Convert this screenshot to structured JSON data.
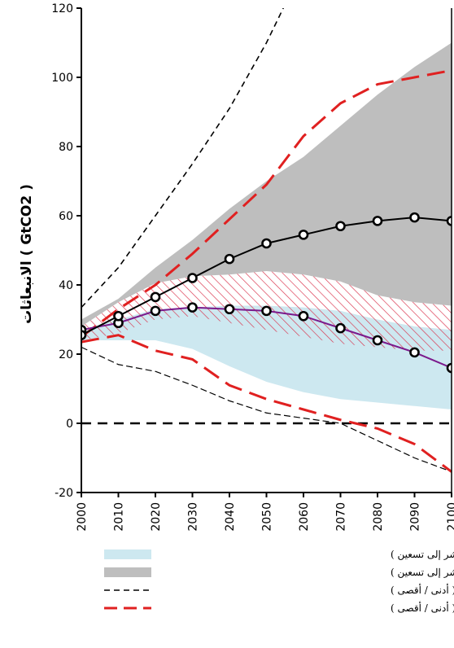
{
  "chart_data": {
    "type": "line",
    "ylabel": "الانبعاثات ( GtCO2 )",
    "xlim": [
      2000,
      2100
    ],
    "ylim": [
      -20,
      120
    ],
    "x_ticks": [
      "2000",
      "2010",
      "2020",
      "2030",
      "2040",
      "2050",
      "2060",
      "2070",
      "2080",
      "2090",
      "2100"
    ],
    "y_ticks": [
      "-20",
      "0",
      "20",
      "40",
      "60",
      "80",
      "100",
      "120"
    ],
    "grid": false,
    "legend_position": "bottom",
    "colors": {
      "stabilization_band": "#cde8f0",
      "baseline_band": "#bebebe",
      "hatch": "#d9304a",
      "red_dash": "#e02020",
      "black_dash": "#000000",
      "black_marker_line": "#000000",
      "purple_marker_line": "#7b1a8c"
    },
    "bands": [
      {
        "name": "نطاق التثبيت ( مئين عاشر إلى تسعين )",
        "x": [
          2000,
          2010,
          2020,
          2030,
          2040,
          2050,
          2060,
          2070,
          2080,
          2090,
          2100
        ],
        "lower": [
          24,
          24,
          24,
          21.5,
          16.5,
          12,
          9,
          7,
          6,
          5,
          4
        ],
        "upper": [
          27,
          30,
          33,
          33.5,
          34,
          34,
          33.5,
          32.5,
          30,
          28,
          27
        ]
      },
      {
        "name": "نطاق خط الأساس ( مئين عاشر إلى تسعين )",
        "x": [
          2000,
          2010,
          2020,
          2030,
          2040,
          2050,
          2060,
          2070,
          2080,
          2090,
          2100
        ],
        "lower": [
          28,
          35,
          40.5,
          42.5,
          43,
          44,
          43,
          41,
          37,
          35,
          34
        ],
        "upper": [
          30,
          36,
          45,
          53,
          62,
          70,
          77,
          86,
          95,
          103,
          110
        ]
      }
    ],
    "hatched_region": {
      "x": [
        2000,
        2010,
        2020,
        2030,
        2040,
        2050,
        2060,
        2070,
        2080,
        2090,
        2100
      ],
      "lower": [
        24,
        26,
        30,
        31,
        29,
        27,
        25,
        23,
        22,
        21,
        21
      ],
      "upper": [
        28,
        35,
        40.5,
        42.5,
        43,
        44,
        43,
        41,
        37,
        35,
        34
      ]
    },
    "series": [
      {
        "name": "ما بعد التقرير الخاص لسيناريو الانبعاثات ( أدنى / أقصى )",
        "style": "black-dash",
        "x": [
          2000,
          2010,
          2020,
          2030,
          2040,
          2050,
          2055
        ],
        "values": [
          33.5,
          45,
          60,
          75,
          91,
          110,
          121
        ]
      },
      {
        "name": "ما بعد التقرير الخاص لسيناريو الانبعاثات ( أدنى / أقصى )",
        "style": "black-dash-thin",
        "x": [
          2000,
          2010,
          2020,
          2030,
          2040,
          2050,
          2060,
          2070,
          2080,
          2090,
          2100
        ],
        "values": [
          22,
          17,
          15,
          11,
          6.5,
          3,
          1.5,
          0,
          -5,
          -10,
          -14
        ]
      },
      {
        "name": "السيناريوهات الشاملة ( أدنى / أقصى )",
        "style": "red-dash",
        "x": [
          2000,
          2010,
          2020,
          2030,
          2040,
          2050,
          2060,
          2070,
          2080,
          2090,
          2100
        ],
        "values": [
          25,
          33,
          40,
          49,
          59,
          69,
          83,
          92.5,
          98,
          100,
          102
        ]
      },
      {
        "name": "السيناريوهات الشاملة ( أدنى / أقصى )",
        "style": "red-dash",
        "x": [
          2000,
          2010,
          2020,
          2030,
          2040,
          2050,
          2060,
          2070,
          2080,
          2090,
          2100
        ],
        "values": [
          23.5,
          25.5,
          21,
          18.5,
          11,
          7,
          4,
          1,
          -1.5,
          -6,
          -14
        ]
      },
      {
        "name": "",
        "style": "black-marker",
        "x": [
          2000,
          2010,
          2020,
          2030,
          2040,
          2050,
          2060,
          2070,
          2080,
          2090,
          2100
        ],
        "values": [
          25.5,
          31,
          36.5,
          42,
          47.5,
          52,
          54.5,
          57,
          58.5,
          59.5,
          58.5
        ]
      },
      {
        "name": "",
        "style": "purple-marker",
        "x": [
          2000,
          2010,
          2020,
          2030,
          2040,
          2050,
          2060,
          2070,
          2080,
          2090,
          2100
        ],
        "values": [
          27,
          29,
          32.5,
          33.5,
          33,
          32.5,
          31,
          27.5,
          24,
          20.5,
          16
        ]
      },
      {
        "name": "",
        "style": "zero-dash",
        "x": [
          2000,
          2100
        ],
        "values": [
          0,
          0
        ]
      }
    ],
    "legend": [
      {
        "label": "نطاق التثبيت ( مئين عاشر إلى تسعين )",
        "swatch": "fill-blue"
      },
      {
        "label": "نطاق خط الأساس ( مئين عاشر إلى تسعين )",
        "swatch": "fill-gray"
      },
      {
        "label": "ما بعد التقرير الخاص لسيناريو الانبعاثات ( أدنى / أقصى )",
        "swatch": "black-dash"
      },
      {
        "label": "السيناريوهات الشاملة ( أدنى / أقصى )",
        "swatch": "red-dash"
      }
    ]
  }
}
